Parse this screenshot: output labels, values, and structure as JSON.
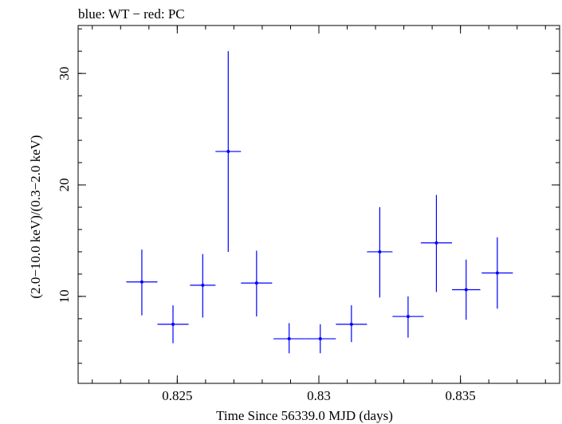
{
  "chart_data": {
    "type": "scatter",
    "title": "blue: WT − red: PC",
    "xlabel": "Time Since 56339.0 MJD (days)",
    "ylabel": "(2.0−10.0 keV)/(0.3−2.0 keV)",
    "xlim": [
      0.8215,
      0.8385
    ],
    "ylim": [
      2.2,
      34.3
    ],
    "x_ticks": [
      0.825,
      0.83,
      0.835
    ],
    "x_tick_labels": [
      "0.825",
      "0.83",
      "0.835"
    ],
    "y_ticks": [
      10,
      20,
      30
    ],
    "y_tick_labels": [
      "10",
      "20",
      "30"
    ],
    "x_minor_step": 0.001,
    "y_minor_step": 2,
    "grid": false,
    "series": [
      {
        "color": "#0000ff",
        "points": [
          {
            "x": 0.82375,
            "y": 11.3,
            "xerr": 0.00055,
            "ylo": 8.3,
            "yhi": 14.2
          },
          {
            "x": 0.82485,
            "y": 7.5,
            "xerr": 0.00055,
            "ylo": 5.8,
            "yhi": 9.2
          },
          {
            "x": 0.8259,
            "y": 11.0,
            "xerr": 0.00045,
            "ylo": 8.1,
            "yhi": 13.8
          },
          {
            "x": 0.8268,
            "y": 23.0,
            "xerr": 0.00045,
            "ylo": 14.0,
            "yhi": 32.0
          },
          {
            "x": 0.8278,
            "y": 11.2,
            "xerr": 0.00055,
            "ylo": 8.2,
            "yhi": 14.1
          },
          {
            "x": 0.82895,
            "y": 6.2,
            "xerr": 0.00055,
            "ylo": 4.9,
            "yhi": 7.6
          },
          {
            "x": 0.83005,
            "y": 6.2,
            "xerr": 0.00055,
            "ylo": 4.9,
            "yhi": 7.5
          },
          {
            "x": 0.83115,
            "y": 7.5,
            "xerr": 0.00055,
            "ylo": 5.9,
            "yhi": 9.2
          },
          {
            "x": 0.83215,
            "y": 14.0,
            "xerr": 0.00045,
            "ylo": 9.9,
            "yhi": 18.0
          },
          {
            "x": 0.83315,
            "y": 8.2,
            "xerr": 0.00055,
            "ylo": 6.3,
            "yhi": 10.0
          },
          {
            "x": 0.83415,
            "y": 14.8,
            "xerr": 0.00055,
            "ylo": 10.4,
            "yhi": 19.1
          },
          {
            "x": 0.8352,
            "y": 10.6,
            "xerr": 0.0005,
            "ylo": 7.9,
            "yhi": 13.3
          },
          {
            "x": 0.8363,
            "y": 12.1,
            "xerr": 0.00055,
            "ylo": 8.9,
            "yhi": 15.3
          }
        ]
      }
    ]
  }
}
